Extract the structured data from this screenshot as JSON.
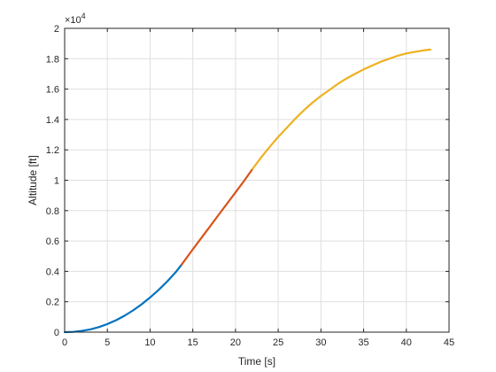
{
  "chart_data": {
    "type": "line",
    "title": "",
    "xlabel": "Time [s]",
    "ylabel": "Altitude [ft]",
    "xlim": [
      0,
      45
    ],
    "ylim": [
      0,
      20000
    ],
    "xticks": [
      0,
      5,
      10,
      15,
      20,
      25,
      30,
      35,
      40,
      45
    ],
    "xtick_labels": [
      "0",
      "5",
      "10",
      "15",
      "20",
      "25",
      "30",
      "35",
      "40",
      "45"
    ],
    "yticks": [
      0,
      2000,
      4000,
      6000,
      8000,
      10000,
      12000,
      14000,
      16000,
      18000,
      20000
    ],
    "ytick_labels": [
      "0",
      "0.2",
      "0.4",
      "0.6",
      "0.8",
      "1",
      "1.2",
      "1.4",
      "1.6",
      "1.8",
      "2"
    ],
    "y_exponent_label": "×10",
    "y_exponent_power": "4",
    "grid": true,
    "legend": "none",
    "series": [
      {
        "color": "#0072BD",
        "x": [
          0,
          1,
          2,
          3,
          4,
          5,
          6,
          7,
          8,
          9,
          10,
          11,
          12,
          13,
          13.7
        ],
        "y": [
          0,
          20,
          80,
          180,
          330,
          530,
          780,
          1080,
          1430,
          1830,
          2280,
          2780,
          3330,
          3950,
          4450
        ]
      },
      {
        "color": "#D95319",
        "x": [
          13.7,
          15,
          16,
          17,
          18,
          19,
          20,
          21,
          22
        ],
        "y": [
          4450,
          5450,
          6200,
          6950,
          7700,
          8450,
          9200,
          9950,
          10750
        ]
      },
      {
        "color": "#EDB120",
        "x": [
          22,
          23,
          24,
          25,
          26,
          27,
          28,
          29,
          30,
          31,
          32,
          33,
          34,
          35,
          36,
          37,
          38,
          39,
          40,
          41,
          42,
          42.8
        ],
        "y": [
          10750,
          11500,
          12200,
          12850,
          13450,
          14050,
          14600,
          15100,
          15550,
          15950,
          16350,
          16700,
          17000,
          17300,
          17550,
          17800,
          18000,
          18200,
          18350,
          18450,
          18550,
          18600
        ]
      }
    ]
  }
}
